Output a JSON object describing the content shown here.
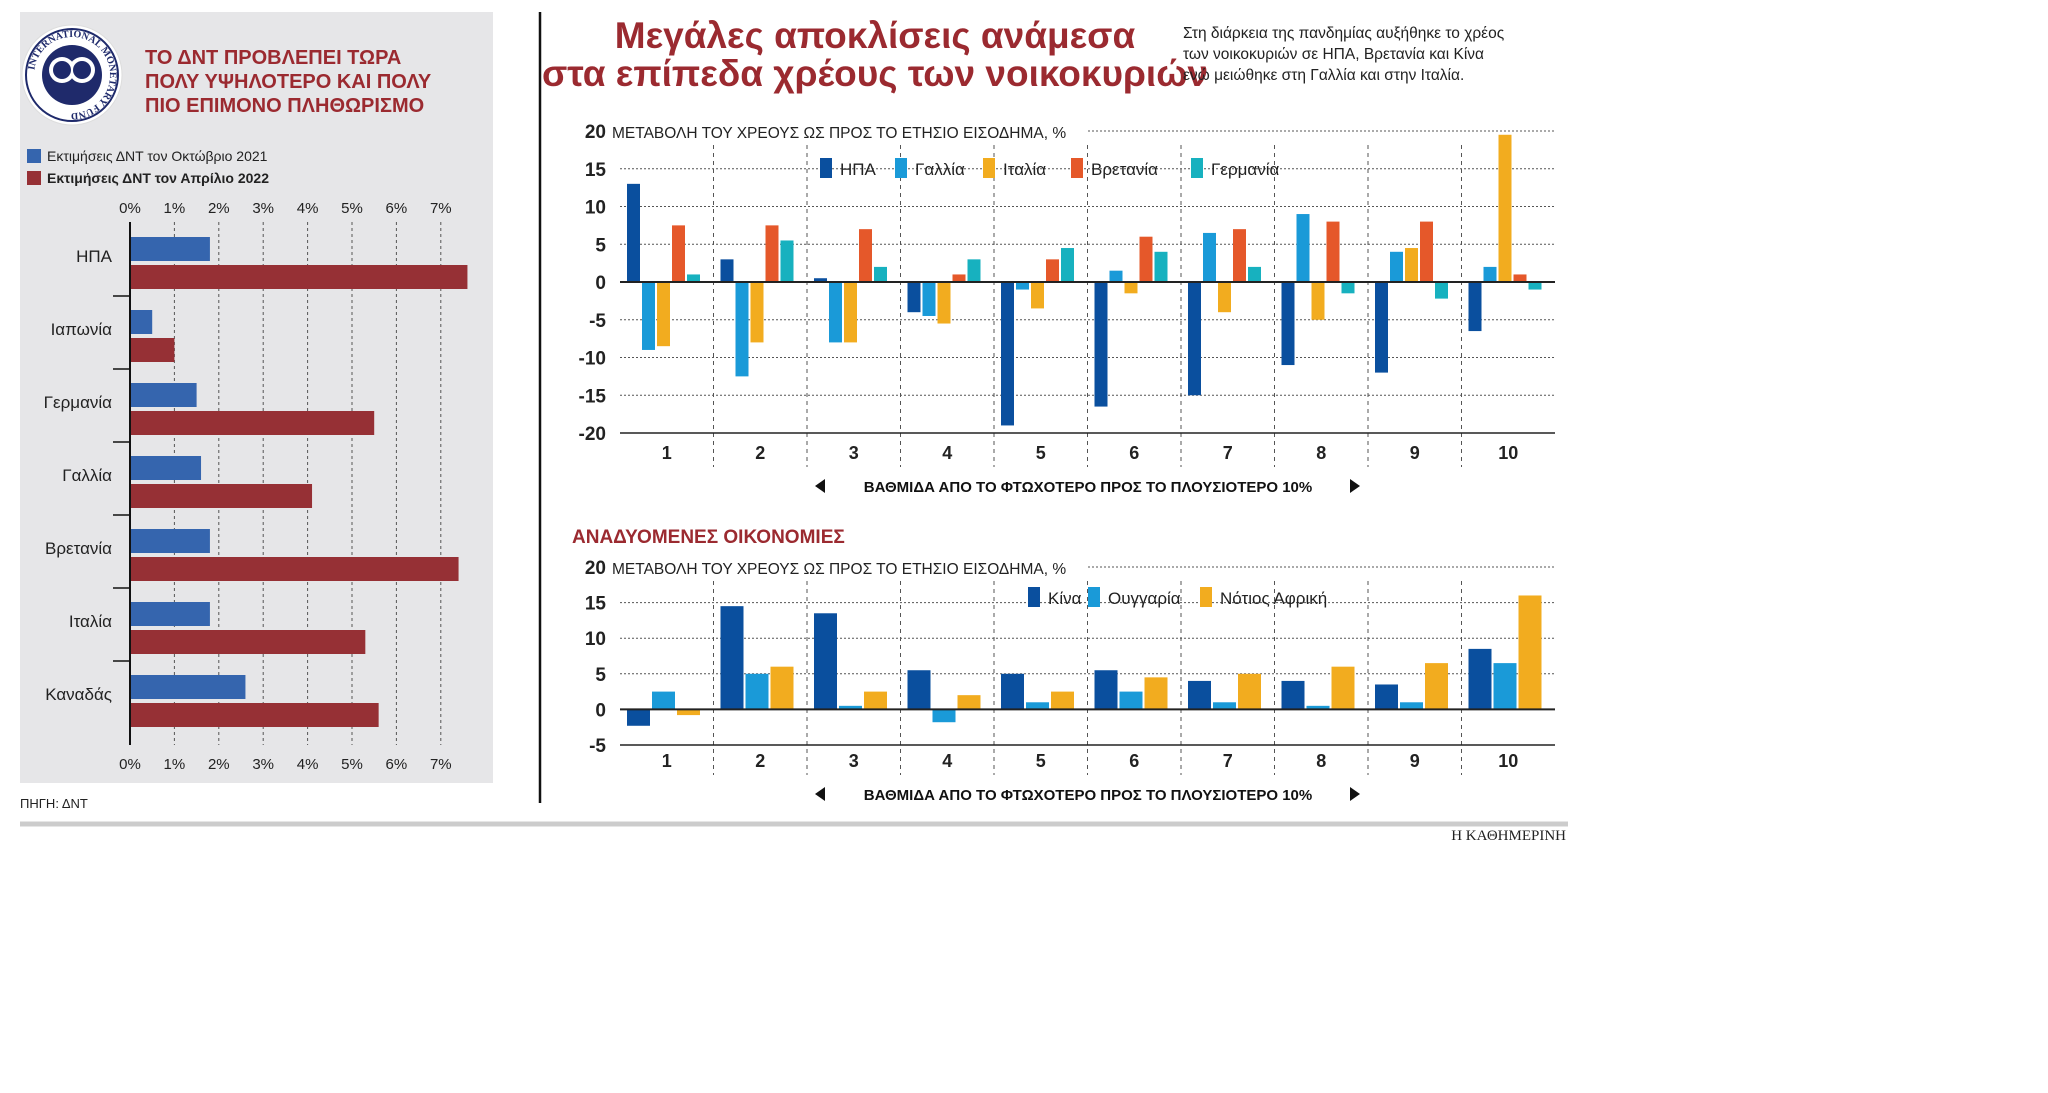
{
  "left_panel": {
    "logo_text": "INTERNATIONAL MONETARY FUND",
    "title_lines": [
      "ΤΟ ΔΝΤ ΠΡΟΒΛΕΠΕΙ ΤΩΡΑ",
      "ΠΟΛΥ ΥΨΗΛΟΤΕΡΟ ΚΑΙ ΠΟΛΥ",
      "ΠΙΟ ΕΠΙΜΟΝΟ ΠΛΗΘΩΡΙΣΜΟ"
    ],
    "source": "ΠΗΓΗ: ΔΝΤ"
  },
  "right_panel": {
    "title_lines": [
      "Μεγάλες αποκλίσεις ανάμεσα",
      "στα επίπεδα χρέους των νοικοκυριών"
    ],
    "subtitle_lines": [
      "Στη διάρκεια της πανδημίας αυξήθηκε το χρέος",
      "των νοικοκυριών σε ΗΠΑ, Βρετανία και Κίνα",
      "ενώ μειώθηκε στη Γαλλία και στην Ιταλία."
    ],
    "section2_title": "ΑΝΑΔΥΟΜΕΝΕΣ ΟΙΚΟΝΟΜΙΕΣ",
    "publisher": "Η ΚΑΘΗΜΕΡΙΝΗ"
  },
  "colors": {
    "panel_bg": "#e6e6e8",
    "title_red": "#9b2a30",
    "oct2021": "#3565ae",
    "apr2022": "#963035",
    "usa": "#0a4f9e",
    "france": "#1a9ad8",
    "italy": "#f2ac1f",
    "uk": "#e5582a",
    "germany": "#17b1bf",
    "china": "#0a4f9e",
    "hungary": "#1a9ad8",
    "south_africa": "#f2ac1f"
  },
  "chart_data": [
    {
      "type": "bar",
      "orientation": "horizontal",
      "categories": [
        "ΗΠΑ",
        "Ιαπωνία",
        "Γερμανία",
        "Γαλλία",
        "Βρετανία",
        "Ιταλία",
        "Καναδάς"
      ],
      "series": [
        {
          "name": "Εκτιμήσεις ΔΝΤ τον Οκτώβριο 2021",
          "values": [
            1.8,
            0.5,
            1.5,
            1.6,
            1.8,
            1.8,
            2.6
          ]
        },
        {
          "name": "Εκτιμήσεις ΔΝΤ τον Απρίλιο 2022",
          "values": [
            7.6,
            1.0,
            5.5,
            4.1,
            7.4,
            5.3,
            5.6
          ]
        }
      ],
      "xlim": [
        0,
        7.5
      ],
      "tick_labels": [
        "0%",
        "1%",
        "2%",
        "3%",
        "4%",
        "5%",
        "6%",
        "7%"
      ],
      "legend": "top-left",
      "grid": true
    },
    {
      "type": "bar",
      "categories": [
        "1",
        "2",
        "3",
        "4",
        "5",
        "6",
        "7",
        "8",
        "9",
        "10"
      ],
      "series": [
        {
          "name": "ΗΠΑ",
          "values": [
            13,
            3,
            0.5,
            -4,
            -19,
            -16.5,
            -15,
            -11,
            -12,
            -6.5
          ]
        },
        {
          "name": "Γαλλία",
          "values": [
            -9,
            -12.5,
            -8,
            -4.5,
            -1,
            1.5,
            6.5,
            9,
            4,
            2
          ]
        },
        {
          "name": "Ιταλία",
          "values": [
            -8.5,
            -8,
            -8,
            -5.5,
            -3.5,
            -1.5,
            -4,
            -5,
            4.5,
            19.5
          ]
        },
        {
          "name": "Βρετανία",
          "values": [
            7.5,
            7.5,
            7,
            1,
            3,
            6,
            7,
            8,
            8,
            1
          ]
        },
        {
          "name": "Γερμανία",
          "values": [
            1,
            5.5,
            2,
            3,
            4.5,
            4,
            2,
            -1.5,
            -2.2,
            -1
          ]
        }
      ],
      "ylabel": "ΜΕΤΑΒΟΛΗ ΤΟΥ ΧΡΕΟΥΣ ΩΣ ΠΡΟΣ ΤΟ ΕΤΗΣΙΟ ΕΙΣΟΔΗΜΑ, %",
      "xlabel": "ΒΑΘΜΙΔΑ ΑΠΟ ΤΟ ΦΤΩΧΟΤΕΡΟ ΠΡΟΣ ΤΟ ΠΛΟΥΣΙΟΤΕΡΟ 10%",
      "ylim": [
        -20,
        20
      ],
      "yticks": [
        "20",
        "15",
        "10",
        "5",
        "0",
        "-5",
        "-10",
        "-15",
        "-20"
      ],
      "legend": "top",
      "grid": true
    },
    {
      "type": "bar",
      "categories": [
        "1",
        "2",
        "3",
        "4",
        "5",
        "6",
        "7",
        "8",
        "9",
        "10"
      ],
      "series": [
        {
          "name": "Κίνα",
          "values": [
            -2.3,
            14.5,
            13.5,
            5.5,
            5,
            5.5,
            4,
            4,
            3.5,
            8.5
          ]
        },
        {
          "name": "Ουγγαρία",
          "values": [
            2.5,
            5,
            0.5,
            -1.8,
            1,
            2.5,
            1,
            0.5,
            1,
            6.5
          ]
        },
        {
          "name": "Νότιος Αφρική",
          "values": [
            -0.8,
            6,
            2.5,
            2,
            2.5,
            4.5,
            5,
            6,
            6.5,
            16
          ]
        }
      ],
      "ylabel": "ΜΕΤΑΒΟΛΗ ΤΟΥ ΧΡΕΟΥΣ ΩΣ ΠΡΟΣ ΤΟ ΕΤΗΣΙΟ ΕΙΣΟΔΗΜΑ, %",
      "xlabel": "ΒΑΘΜΙΔΑ ΑΠΟ ΤΟ ΦΤΩΧΟΤΕΡΟ ΠΡΟΣ ΤΟ ΠΛΟΥΣΙΟΤΕΡΟ 10%",
      "ylim": [
        -5,
        20
      ],
      "yticks": [
        "20",
        "15",
        "10",
        "5",
        "0",
        "-5"
      ],
      "legend": "top-right",
      "grid": true
    }
  ]
}
